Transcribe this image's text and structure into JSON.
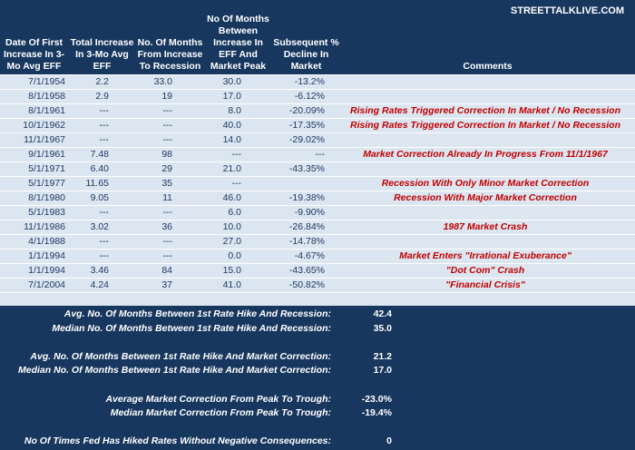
{
  "header": {
    "brand": "STREETTALKLIVE.COM",
    "columns": [
      "Date Of First Increase In 3-Mo Avg EFF",
      "Total Increase In 3-Mo Avg EFF",
      "No. Of Months From Increase To Recession",
      "No Of Months Between Increase In EFF And Market Peak",
      "Subsequent % Decline In Market",
      "Comments"
    ]
  },
  "table": {
    "rows": [
      [
        "7/1/1954",
        "2.2",
        "33.0",
        "30.0",
        "-13.2%",
        null
      ],
      [
        "8/1/1958",
        "2.9",
        "19",
        "17.0",
        "-6.12%",
        null
      ],
      [
        "8/1/1961",
        "---",
        "---",
        "8.0",
        "-20.09%",
        "Rising Rates Triggered Correction In Market / No Recession"
      ],
      [
        "10/1/1962",
        "---",
        "---",
        "40.0",
        "-17.35%",
        "Rising Rates Triggered Correction In Market / No Recession"
      ],
      [
        "11/1/1967",
        "---",
        "---",
        "14.0",
        "-29.02%",
        null
      ],
      [
        "9/1/1961",
        "7.48",
        "98",
        "---",
        "---",
        "Market Correction Already In Progress From 11/1/1967"
      ],
      [
        "5/1/1971",
        "6.40",
        "29",
        "21.0",
        "-43.35%",
        null
      ],
      [
        "5/1/1977",
        "11.65",
        "35",
        "---",
        null,
        "Recession With Only Minor Market Correction"
      ],
      [
        "8/1/1980",
        "9.05",
        "11",
        "46.0",
        "-19.38%",
        "Recession With Major Market Correction"
      ],
      [
        "5/1/1983",
        "---",
        "---",
        "6.0",
        "-9.90%",
        null
      ],
      [
        "11/1/1986",
        "3.02",
        "36",
        "10.0",
        "-26.84%",
        "1987 Market Crash"
      ],
      [
        "4/1/1988",
        "---",
        "---",
        "27.0",
        "-14.78%",
        null
      ],
      [
        "1/1/1994",
        "---",
        "---",
        "0.0",
        "-4.67%",
        "Market Enters \"Irrational Exuberance\""
      ],
      [
        "1/1/1994",
        "3.46",
        "84",
        "15.0",
        "-43.65%",
        "\"Dot Com\" Crash"
      ],
      [
        "7/1/2004",
        "4.24",
        "37",
        "41.0",
        "-50.82%",
        "\"Financial Crisis\""
      ]
    ]
  },
  "summary": [
    {
      "label": "Avg. No. Of Months Between 1st Rate Hike And Recession:",
      "value": "42.4"
    },
    {
      "label": "Median No. Of Months Between 1st Rate Hike And Recession:",
      "value": "35.0"
    },
    null,
    {
      "label": "Avg. No. Of Months Between 1st Rate Hike And Market Correction:",
      "value": "21.2"
    },
    {
      "label": "Median No. Of Months Between 1st Rate Hike And Market Correction:",
      "value": "17.0"
    },
    null,
    {
      "label": "Average Market Correction From Peak To Trough:",
      "value": "-23.0%"
    },
    {
      "label": "Median Market Correction From Peak To Trough:",
      "value": "-19.4%"
    },
    null,
    {
      "label": "No Of Times Fed Has Hiked Rates Without Negative Consequences:",
      "value": "0"
    }
  ]
}
